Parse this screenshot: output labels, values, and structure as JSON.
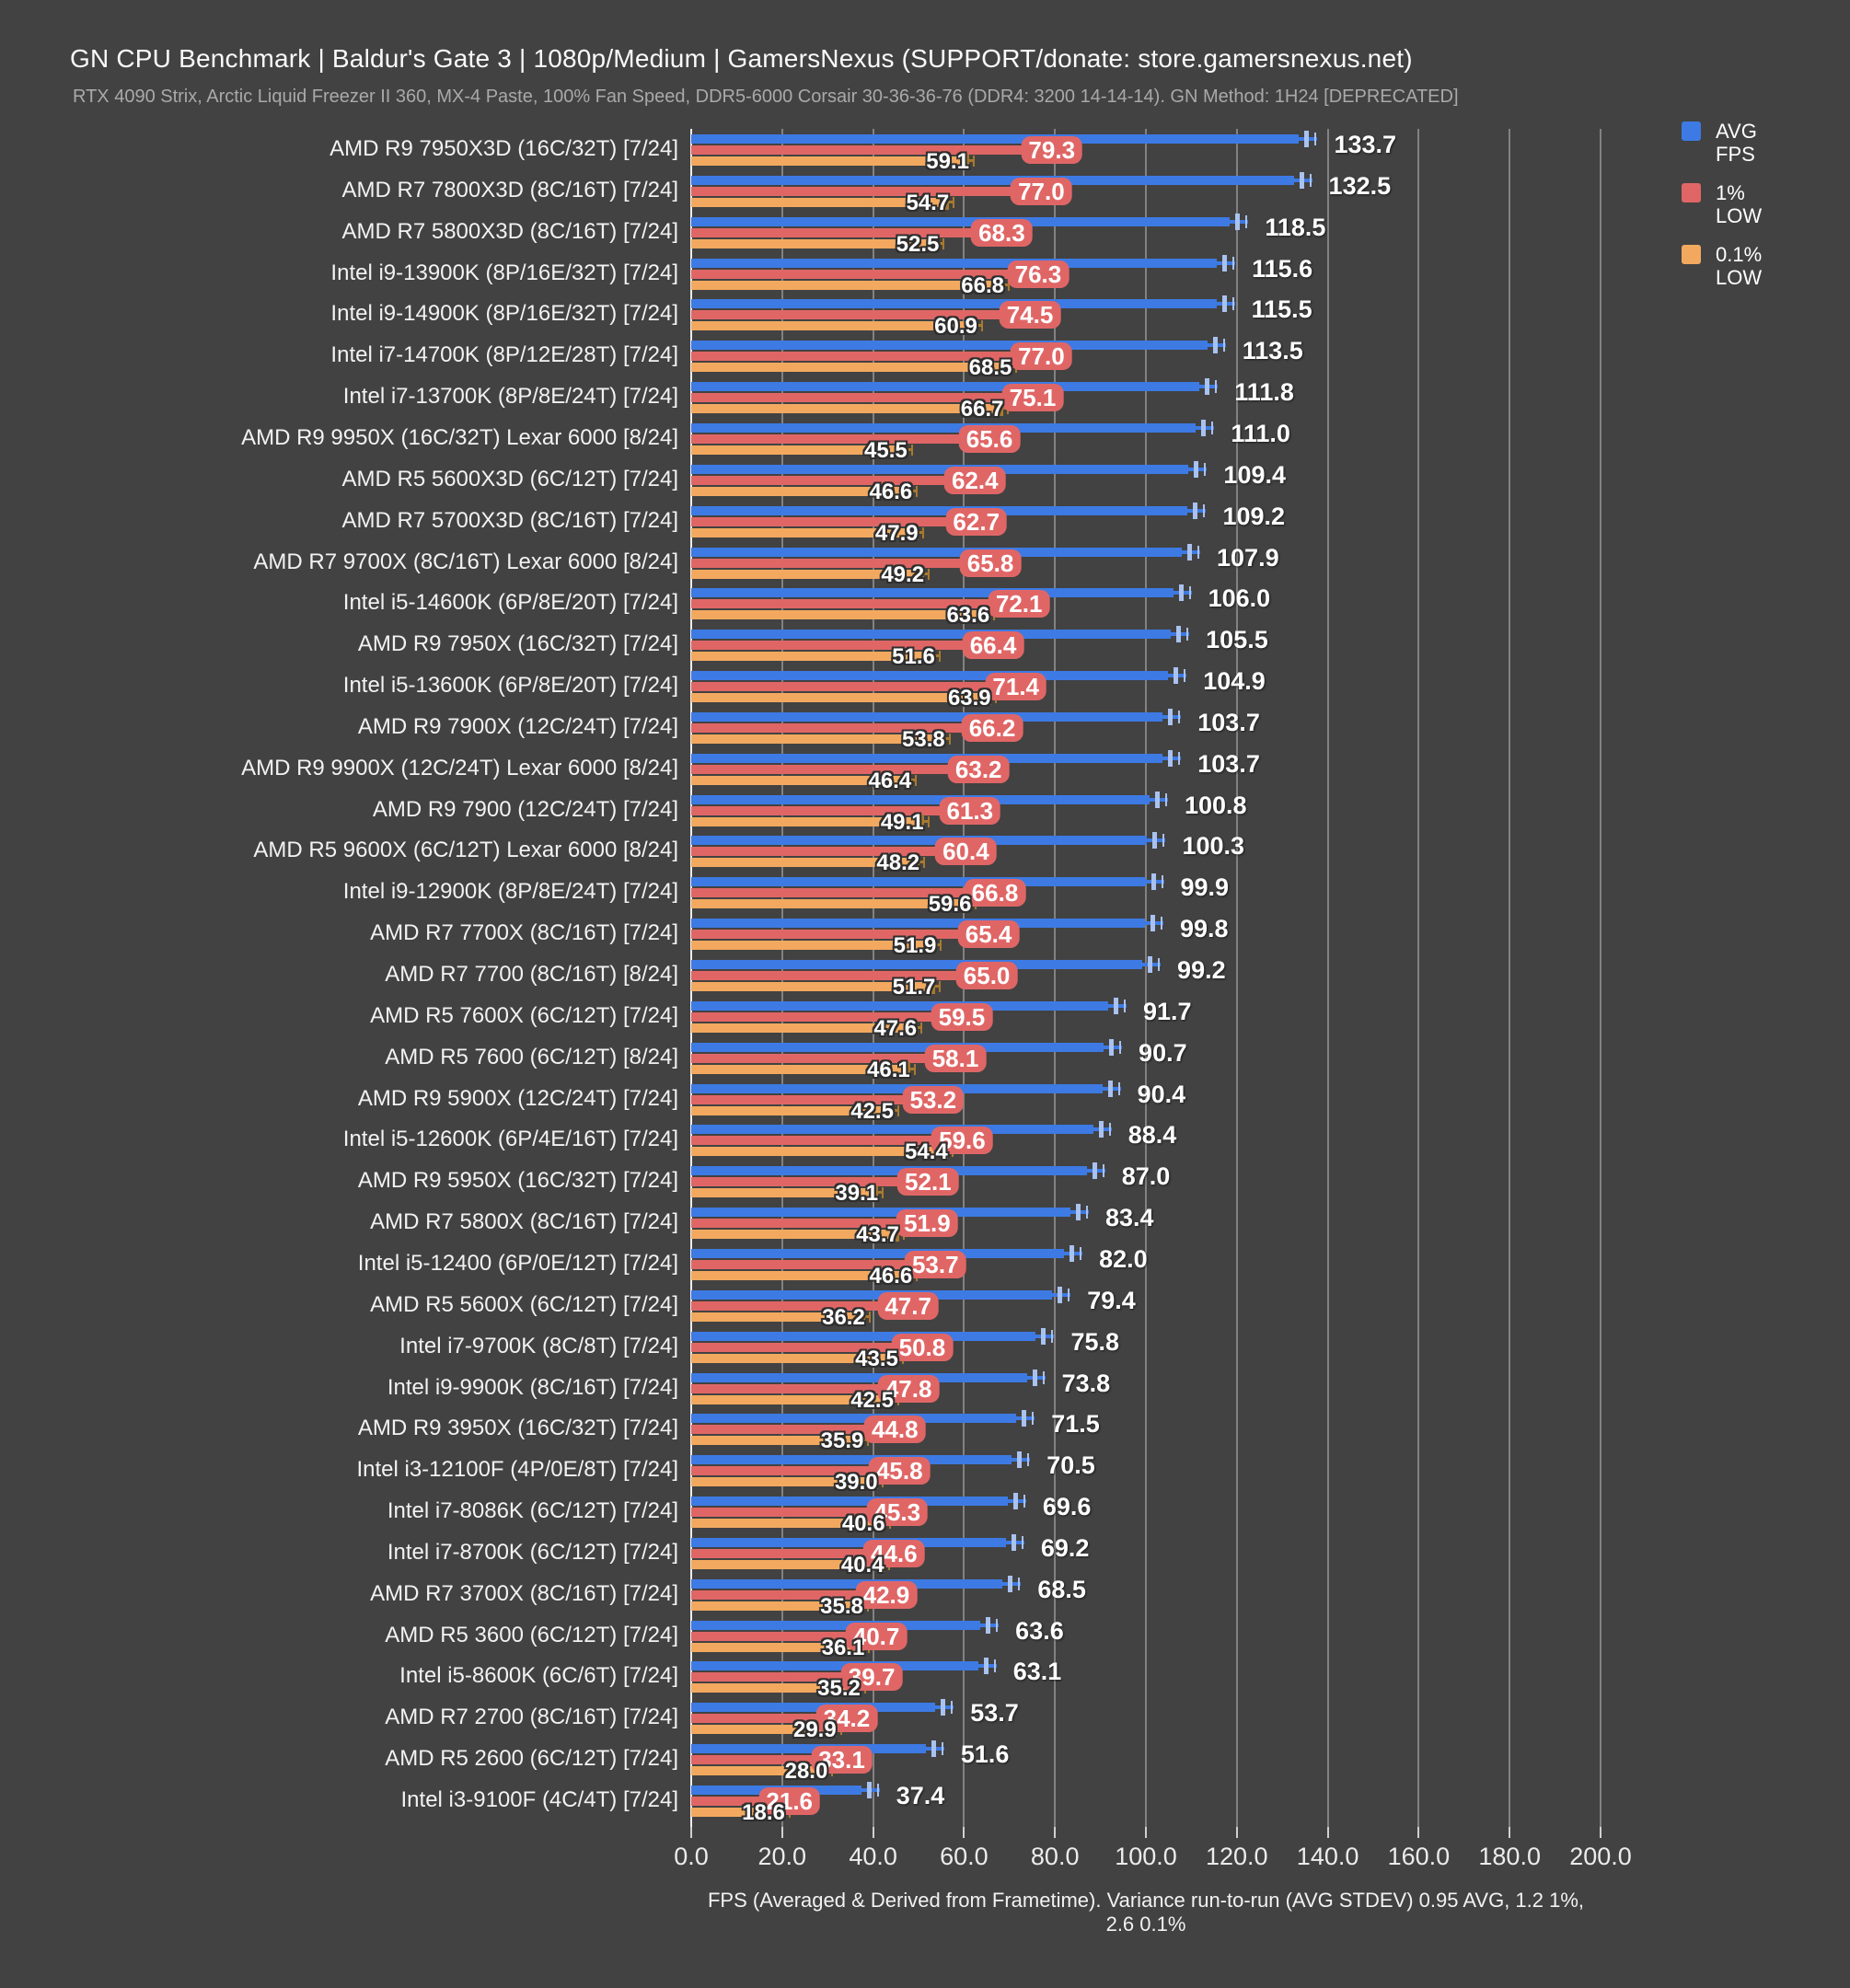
{
  "header": {
    "title": "GN CPU Benchmark | Baldur's Gate 3 | 1080p/Medium | GamersNexus (SUPPORT/donate: store.gamersnexus.net)",
    "subtitle": "RTX 4090 Strix, Arctic Liquid Freezer II 360, MX-4 Paste, 100% Fan Speed, DDR5-6000 Corsair 30-36-36-76 (DDR4: 3200 14-14-14). GN Method: 1H24 [DEPRECATED]"
  },
  "legend": {
    "items": [
      {
        "label": "AVG\nFPS",
        "color": "#3d7ae4"
      },
      {
        "label": "1%\nLOW",
        "color": "#e06666"
      },
      {
        "label": "0.1%\nLOW",
        "color": "#f2a95f"
      }
    ]
  },
  "axis": {
    "ticks": [
      "0.0",
      "20.0",
      "40.0",
      "60.0",
      "80.0",
      "100.0",
      "120.0",
      "140.0",
      "160.0",
      "180.0",
      "200.0"
    ],
    "caption": "FPS (Averaged & Derived from Frametime). Variance run-to-run (AVG STDEV) 0.95 AVG, 1.2 1%, 2.6 0.1%"
  },
  "colors": {
    "background": "#424242",
    "avg_bar": "#3d7ae4",
    "avg_whisker": "#a9c2ef",
    "p1_bar": "#e06666",
    "p1_whisker": "#8a2f2f",
    "p01_bar": "#f2a95f",
    "p01_whisker": "#a87a2e",
    "gridline": "#828282"
  },
  "chart_data": {
    "type": "bar",
    "orientation": "horizontal",
    "title": "GN CPU Benchmark | Baldur's Gate 3 | 1080p/Medium",
    "xlabel": "FPS (Averaged & Derived from Frametime). Variance run-to-run (AVG STDEV) 0.95 AVG, 1.2 1%, 2.6 0.1%",
    "xlim": [
      0,
      200
    ],
    "xticks": [
      0,
      20,
      40,
      60,
      80,
      100,
      120,
      140,
      160,
      180,
      200
    ],
    "grid": true,
    "legend_position": "top-right",
    "categories": [
      "AMD R9 7950X3D (16C/32T) [7/24]",
      "AMD R7 7800X3D (8C/16T) [7/24]",
      "AMD R7 5800X3D (8C/16T) [7/24]",
      "Intel i9-13900K (8P/16E/32T) [7/24]",
      "Intel i9-14900K (8P/16E/32T) [7/24]",
      "Intel i7-14700K (8P/12E/28T) [7/24]",
      "Intel i7-13700K (8P/8E/24T) [7/24]",
      "AMD R9 9950X (16C/32T) Lexar 6000 [8/24]",
      "AMD R5 5600X3D (6C/12T) [7/24]",
      "AMD R7 5700X3D (8C/16T) [7/24]",
      "AMD R7 9700X (8C/16T) Lexar 6000 [8/24]",
      "Intel i5-14600K (6P/8E/20T) [7/24]",
      "AMD R9 7950X (16C/32T) [7/24]",
      "Intel i5-13600K (6P/8E/20T) [7/24]",
      "AMD R9 7900X (12C/24T) [7/24]",
      "AMD R9 9900X (12C/24T) Lexar 6000 [8/24]",
      "AMD R9 7900 (12C/24T) [7/24]",
      "AMD R5 9600X (6C/12T) Lexar 6000 [8/24]",
      "Intel i9-12900K (8P/8E/24T) [7/24]",
      "AMD R7 7700X (8C/16T) [7/24]",
      "AMD R7 7700 (8C/16T) [8/24]",
      "AMD R5 7600X (6C/12T) [7/24]",
      "AMD R5 7600 (6C/12T) [8/24]",
      "AMD R9 5900X (12C/24T) [7/24]",
      "Intel i5-12600K (6P/4E/16T) [7/24]",
      "AMD R9 5950X (16C/32T) [7/24]",
      "AMD R7 5800X (8C/16T) [7/24]",
      "Intel i5-12400 (6P/0E/12T) [7/24]",
      "AMD R5 5600X (6C/12T) [7/24]",
      "Intel i7-9700K (8C/8T) [7/24]",
      "Intel i9-9900K (8C/16T) [7/24]",
      "AMD R9 3950X (16C/32T) [7/24]",
      "Intel i3-12100F (4P/0E/8T) [7/24]",
      "Intel i7-8086K (6C/12T) [7/24]",
      "Intel i7-8700K (6C/12T) [7/24]",
      "AMD R7 3700X (8C/16T) [7/24]",
      "AMD R5 3600 (6C/12T) [7/24]",
      "Intel i5-8600K (6C/6T) [7/24]",
      "AMD R7 2700 (8C/16T) [7/24]",
      "AMD R5 2600 (6C/12T) [7/24]",
      "Intel i3-9100F (4C/4T) [7/24]"
    ],
    "series": [
      {
        "name": "AVG FPS",
        "color": "#3d7ae4",
        "values": [
          133.7,
          132.5,
          118.5,
          115.6,
          115.5,
          113.5,
          111.8,
          111.0,
          109.4,
          109.2,
          107.9,
          106.0,
          105.5,
          104.9,
          103.7,
          103.7,
          100.8,
          100.3,
          99.9,
          99.8,
          99.2,
          91.7,
          90.7,
          90.4,
          88.4,
          87.0,
          83.4,
          82.0,
          79.4,
          75.8,
          73.8,
          71.5,
          70.5,
          69.6,
          69.2,
          68.5,
          63.6,
          63.1,
          53.7,
          51.6,
          37.4
        ]
      },
      {
        "name": "1% LOW",
        "color": "#e06666",
        "values": [
          79.3,
          77.0,
          68.3,
          76.3,
          74.5,
          77.0,
          75.1,
          65.6,
          62.4,
          62.7,
          65.8,
          72.1,
          66.4,
          71.4,
          66.2,
          63.2,
          61.3,
          60.4,
          66.8,
          65.4,
          65.0,
          59.5,
          58.1,
          53.2,
          59.6,
          52.1,
          51.9,
          53.7,
          47.7,
          50.8,
          47.8,
          44.8,
          45.8,
          45.3,
          44.6,
          42.9,
          40.7,
          39.7,
          34.2,
          33.1,
          21.6
        ]
      },
      {
        "name": "0.1% LOW",
        "color": "#f2a95f",
        "values": [
          59.1,
          54.7,
          52.5,
          66.8,
          60.9,
          68.5,
          66.7,
          45.5,
          46.6,
          47.9,
          49.2,
          63.6,
          51.6,
          63.9,
          53.8,
          46.4,
          49.1,
          48.2,
          59.6,
          51.9,
          51.7,
          47.6,
          46.1,
          42.5,
          54.4,
          39.1,
          43.7,
          46.6,
          36.2,
          43.5,
          42.5,
          35.9,
          39.0,
          40.6,
          40.4,
          35.8,
          36.1,
          35.2,
          29.9,
          28.0,
          18.6
        ]
      }
    ]
  }
}
